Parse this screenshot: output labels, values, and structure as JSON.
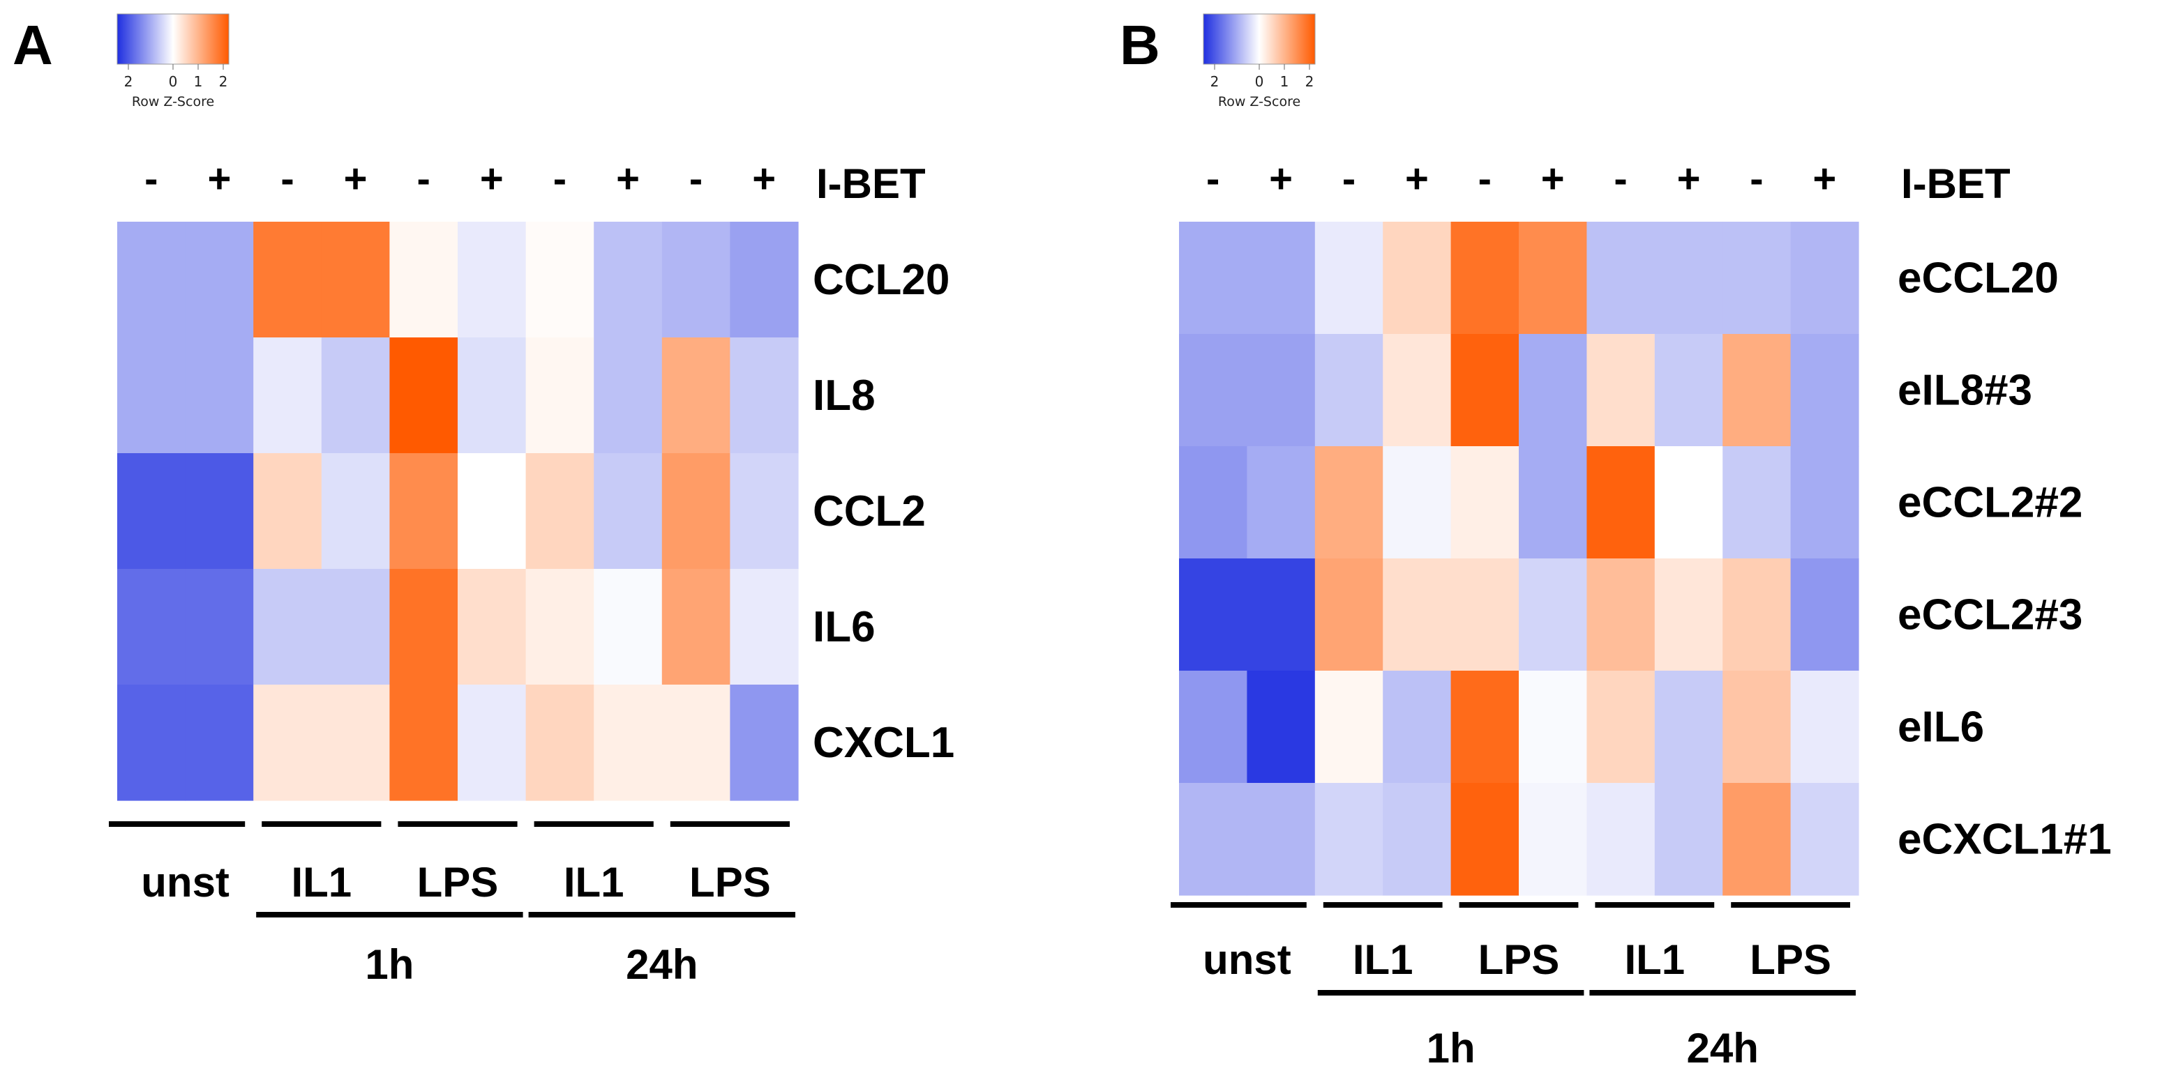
{
  "chart_data": [
    {
      "type": "heatmap",
      "panel": "A",
      "color_key": {
        "title": "Row Z-Score",
        "ticks": [
          "2",
          "0",
          "1",
          "2"
        ],
        "low_color": "#1f2fe0",
        "mid_color": "#ffffff",
        "high_color": "#ff5a00",
        "range": [
          -2,
          2
        ]
      },
      "treatment_label": "I-BET",
      "treatment_signs": [
        "-",
        "+",
        "-",
        "+",
        "-",
        "+",
        "-",
        "+",
        "-",
        "+"
      ],
      "rows": [
        "CCL20",
        "IL8",
        "CCL2",
        "IL6",
        "CXCL1"
      ],
      "column_groups": [
        "unst",
        "IL1",
        "LPS",
        "IL1",
        "LPS"
      ],
      "time_groups": [
        {
          "label": "1h",
          "groups": [
            1,
            2
          ]
        },
        {
          "label": "24h",
          "groups": [
            3,
            4
          ]
        }
      ],
      "values": [
        [
          -0.8,
          -0.8,
          1.6,
          1.6,
          0.1,
          -0.2,
          0.05,
          -0.6,
          -0.7,
          -0.9
        ],
        [
          -0.8,
          -0.8,
          -0.2,
          -0.5,
          2.0,
          -0.3,
          0.1,
          -0.6,
          1.0,
          -0.5
        ],
        [
          -1.6,
          -1.6,
          0.5,
          -0.3,
          1.4,
          0.0,
          0.5,
          -0.5,
          1.2,
          -0.4
        ],
        [
          -1.4,
          -1.4,
          -0.5,
          -0.5,
          1.7,
          0.4,
          0.2,
          -0.05,
          1.1,
          -0.2
        ],
        [
          -1.5,
          -1.5,
          0.3,
          0.3,
          1.7,
          -0.2,
          0.5,
          0.2,
          0.2,
          -1.0
        ]
      ]
    },
    {
      "type": "heatmap",
      "panel": "B",
      "color_key": {
        "title": "Row Z-Score",
        "ticks": [
          "2",
          "0",
          "1",
          "2"
        ],
        "low_color": "#1f2fe0",
        "mid_color": "#ffffff",
        "high_color": "#ff5a00",
        "range": [
          -2,
          2
        ]
      },
      "treatment_label": "I-BET",
      "treatment_signs": [
        "-",
        "+",
        "-",
        "+",
        "-",
        "+",
        "-",
        "+",
        "-",
        "+"
      ],
      "rows": [
        "eCCL20",
        "eIL8#3",
        "eCCL2#2",
        "eCCL2#3",
        "eIL6",
        "eCXCL1#1"
      ],
      "column_groups": [
        "unst",
        "IL1",
        "LPS",
        "IL1",
        "LPS"
      ],
      "time_groups": [
        {
          "label": "1h",
          "groups": [
            1,
            2
          ]
        },
        {
          "label": "24h",
          "groups": [
            3,
            4
          ]
        }
      ],
      "values": [
        [
          -0.8,
          -0.8,
          -0.2,
          0.5,
          1.7,
          1.4,
          -0.6,
          -0.6,
          -0.6,
          -0.7
        ],
        [
          -0.9,
          -0.9,
          -0.5,
          0.3,
          1.9,
          -0.8,
          0.4,
          -0.5,
          1.0,
          -0.8
        ],
        [
          -1.0,
          -0.8,
          1.0,
          -0.1,
          0.2,
          -0.8,
          1.9,
          0.0,
          -0.5,
          -0.8
        ],
        [
          -1.8,
          -1.8,
          1.1,
          0.4,
          0.4,
          -0.4,
          0.8,
          0.3,
          0.6,
          -1.0
        ],
        [
          -1.0,
          -1.9,
          0.1,
          -0.6,
          1.8,
          -0.05,
          0.5,
          -0.5,
          0.7,
          -0.2
        ],
        [
          -0.7,
          -0.7,
          -0.4,
          -0.5,
          1.9,
          -0.1,
          -0.2,
          -0.5,
          1.2,
          -0.4
        ]
      ]
    }
  ]
}
